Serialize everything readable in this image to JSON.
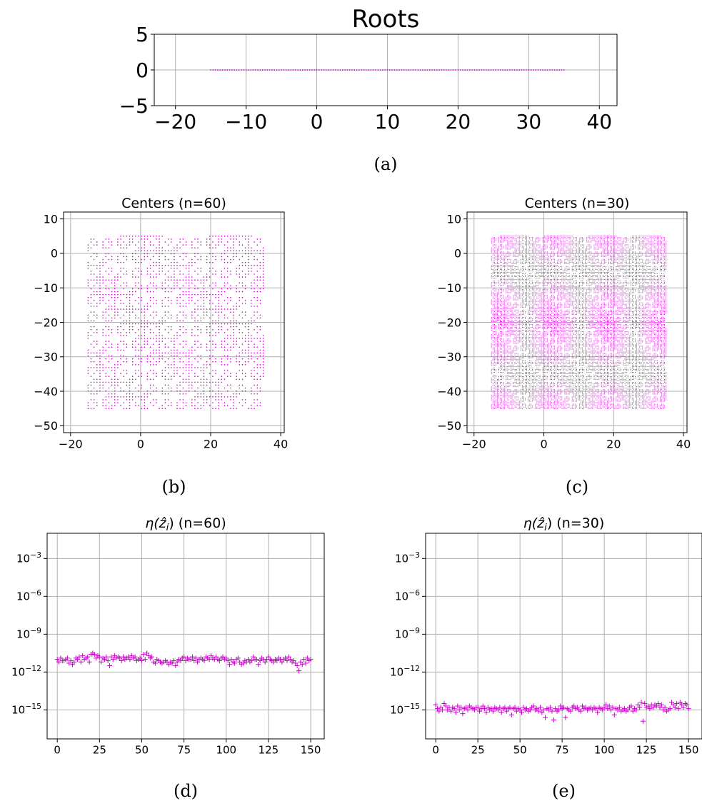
{
  "chart_data": [
    {
      "id": "a",
      "type": "scatter",
      "title": "Roots",
      "caption": "(a)",
      "xlim": [
        -23,
        42.5
      ],
      "ylim": [
        -5,
        5
      ],
      "xticks": [
        -20,
        -10,
        0,
        10,
        20,
        30,
        40
      ],
      "yticks": [
        -5,
        0,
        5
      ],
      "xticklabels": [
        "−20",
        "−10",
        "0",
        "10",
        "20",
        "30",
        "40"
      ],
      "yticklabels": [
        "−5",
        "0",
        "5"
      ],
      "grid": true,
      "color": "#cc00cc",
      "marker": "dot",
      "points": {
        "kind": "line",
        "count": 151,
        "x0": -15,
        "x1": 35,
        "y": 0
      }
    },
    {
      "id": "b",
      "type": "scatter",
      "title": "Centers (n=60)",
      "caption": "(b)",
      "xlim": [
        -22,
        41
      ],
      "ylim": [
        -52,
        12
      ],
      "xticks": [
        -20,
        0,
        20,
        40
      ],
      "yticks": [
        10,
        0,
        -10,
        -20,
        -30,
        -40,
        -50
      ],
      "xticklabels": [
        "−20",
        "0",
        "20",
        "40"
      ],
      "yticklabels": [
        "10",
        "0",
        "−10",
        "−20",
        "−30",
        "−40",
        "−50"
      ],
      "grid": true,
      "color": "#cc00cc",
      "marker": "dot",
      "points": {
        "kind": "grid",
        "x0": -15,
        "x1": 35,
        "y0": -45,
        "y1": 5,
        "nx": 60,
        "ny": 60
      }
    },
    {
      "id": "c",
      "type": "scatter",
      "title": "Centers (n=30)",
      "caption": "(c)",
      "xlim": [
        -22,
        41
      ],
      "ylim": [
        -52,
        12
      ],
      "xticks": [
        -20,
        0,
        20,
        40
      ],
      "yticks": [
        10,
        0,
        -10,
        -20,
        -30,
        -40,
        -50
      ],
      "xticklabels": [
        "−20",
        "0",
        "20",
        "40"
      ],
      "yticklabels": [
        "10",
        "0",
        "−10",
        "−20",
        "−30",
        "−40",
        "−50"
      ],
      "grid": true,
      "color": "#cc00cc",
      "marker": "dot",
      "points": {
        "kind": "grid",
        "x0": -15,
        "x1": 35,
        "y0": -45,
        "y1": 5,
        "nx": 120,
        "ny": 120
      }
    },
    {
      "id": "d",
      "type": "scatter",
      "title_prefix": "η(ẑ",
      "title_sub": "i",
      "title_suffix": ") (n=60)",
      "caption": "(d)",
      "xlim": [
        -6,
        158
      ],
      "ylim_log10": [
        -17.3,
        -1.0
      ],
      "xticks": [
        0,
        25,
        50,
        75,
        100,
        125,
        150
      ],
      "xticklabels": [
        "0",
        "25",
        "50",
        "75",
        "100",
        "125",
        "150"
      ],
      "ytick_exponents": [
        -3,
        -6,
        -9,
        -12,
        -15
      ],
      "ytick_base": "10",
      "ytick_exps_text": [
        "−3",
        "−6",
        "−9",
        "−12",
        "−15"
      ],
      "grid": true,
      "color": "#cc00cc",
      "marker": "+",
      "log10_values": [
        -11.0,
        -11.2,
        -10.9,
        -11.1,
        -11.1,
        -11.0,
        -10.9,
        -11.3,
        -11.1,
        -11.4,
        -11.2,
        -10.9,
        -11.0,
        -10.8,
        -11.2,
        -10.7,
        -11.0,
        -10.9,
        -10.8,
        -11.2,
        -10.6,
        -10.5,
        -10.6,
        -10.9,
        -10.7,
        -10.8,
        -11.2,
        -10.9,
        -11.0,
        -10.8,
        -11.1,
        -11.5,
        -10.8,
        -11.0,
        -10.7,
        -10.9,
        -10.8,
        -10.9,
        -11.1,
        -10.8,
        -11.0,
        -10.9,
        -10.8,
        -11.0,
        -10.7,
        -10.9,
        -10.8,
        -11.1,
        -11.0,
        -10.9,
        -11.1,
        -10.6,
        -11.0,
        -10.5,
        -10.7,
        -10.9,
        -10.8,
        -11.2,
        -11.3,
        -11.0,
        -11.1,
        -11.2,
        -11.3,
        -11.2,
        -11.1,
        -11.2,
        -11.4,
        -11.2,
        -11.3,
        -11.1,
        -11.5,
        -11.2,
        -11.0,
        -11.1,
        -10.9,
        -10.8,
        -11.1,
        -10.9,
        -11.0,
        -11.0,
        -10.8,
        -11.1,
        -10.9,
        -11.2,
        -11.0,
        -10.9,
        -11.0,
        -11.1,
        -10.8,
        -10.9,
        -11.0,
        -10.7,
        -10.9,
        -11.0,
        -10.8,
        -11.0,
        -11.1,
        -10.9,
        -10.8,
        -11.0,
        -10.9,
        -11.1,
        -11.4,
        -11.0,
        -11.2,
        -11.3,
        -11.0,
        -10.9,
        -11.2,
        -11.4,
        -11.3,
        -11.1,
        -11.2,
        -11.0,
        -11.2,
        -11.1,
        -10.8,
        -11.0,
        -11.0,
        -11.4,
        -11.1,
        -10.9,
        -11.0,
        -11.2,
        -11.0,
        -10.8,
        -11.0,
        -11.1,
        -11.2,
        -11.0,
        -11.1,
        -10.9,
        -11.0,
        -11.2,
        -11.0,
        -10.9,
        -11.1,
        -10.8,
        -11.0,
        -11.2,
        -11.1,
        -11.3,
        -11.5,
        -11.9,
        -11.2,
        -11.4,
        -11.0,
        -11.3,
        -10.9,
        -11.1,
        -11.0
      ]
    },
    {
      "id": "e",
      "type": "scatter",
      "title_prefix": "η(ẑ",
      "title_sub": "i",
      "title_suffix": ") (n=30)",
      "caption": "(e)",
      "xlim": [
        -6,
        158
      ],
      "ylim_log10": [
        -17.3,
        -1.0
      ],
      "xticks": [
        0,
        25,
        50,
        75,
        100,
        125,
        150
      ],
      "xticklabels": [
        "0",
        "25",
        "50",
        "75",
        "100",
        "125",
        "150"
      ],
      "ytick_exponents": [
        -3,
        -6,
        -9,
        -12,
        -15
      ],
      "ytick_base": "10",
      "ytick_exps_text": [
        "−3",
        "−6",
        "−9",
        "−12",
        "−15"
      ],
      "grid": true,
      "color": "#cc00cc",
      "marker": "+",
      "log10_values": [
        -14.6,
        -14.9,
        -15.1,
        -14.8,
        -15.0,
        -14.5,
        -14.7,
        -15.0,
        -14.8,
        -15.1,
        -14.8,
        -14.9,
        -15.2,
        -14.7,
        -15.0,
        -14.8,
        -15.3,
        -14.9,
        -14.8,
        -15.0,
        -14.7,
        -14.8,
        -14.9,
        -15.0,
        -14.8,
        -14.8,
        -15.1,
        -14.9,
        -14.7,
        -14.9,
        -15.2,
        -14.8,
        -15.0,
        -14.9,
        -15.1,
        -14.8,
        -14.9,
        -15.0,
        -14.8,
        -15.2,
        -14.9,
        -14.8,
        -15.1,
        -14.9,
        -14.8,
        -15.4,
        -14.9,
        -14.8,
        -15.1,
        -14.9,
        -15.0,
        -15.2,
        -14.8,
        -15.0,
        -14.9,
        -15.1,
        -15.0,
        -14.8,
        -14.7,
        -15.0,
        -14.9,
        -15.1,
        -14.8,
        -15.2,
        -15.0,
        -15.6,
        -14.9,
        -15.0,
        -14.8,
        -15.1,
        -15.8,
        -14.9,
        -15.1,
        -15.0,
        -14.7,
        -14.9,
        -14.8,
        -15.6,
        -14.9,
        -15.0,
        -15.1,
        -14.8,
        -14.7,
        -14.9,
        -14.8,
        -15.0,
        -15.1,
        -14.7,
        -14.9,
        -14.8,
        -15.0,
        -14.9,
        -14.8,
        -15.0,
        -14.8,
        -14.9,
        -15.2,
        -14.8,
        -14.9,
        -15.0,
        -14.8,
        -14.6,
        -14.9,
        -14.7,
        -15.0,
        -14.8,
        -15.4,
        -14.9,
        -15.0,
        -14.8,
        -15.1,
        -15.0,
        -14.9,
        -15.1,
        -15.0,
        -14.8,
        -14.7,
        -15.1,
        -14.9,
        -15.0,
        -14.6,
        -14.8,
        -14.4,
        -15.9,
        -14.5,
        -14.8,
        -14.7,
        -14.9,
        -14.6,
        -14.8,
        -14.6,
        -14.7,
        -14.5,
        -14.8,
        -14.6,
        -15.0,
        -14.8,
        -15.1,
        -15.0,
        -14.9,
        -14.4,
        -14.6,
        -14.8,
        -14.5,
        -14.9,
        -14.4,
        -14.6,
        -14.8,
        -14.5,
        -14.6,
        -14.9
      ]
    }
  ]
}
